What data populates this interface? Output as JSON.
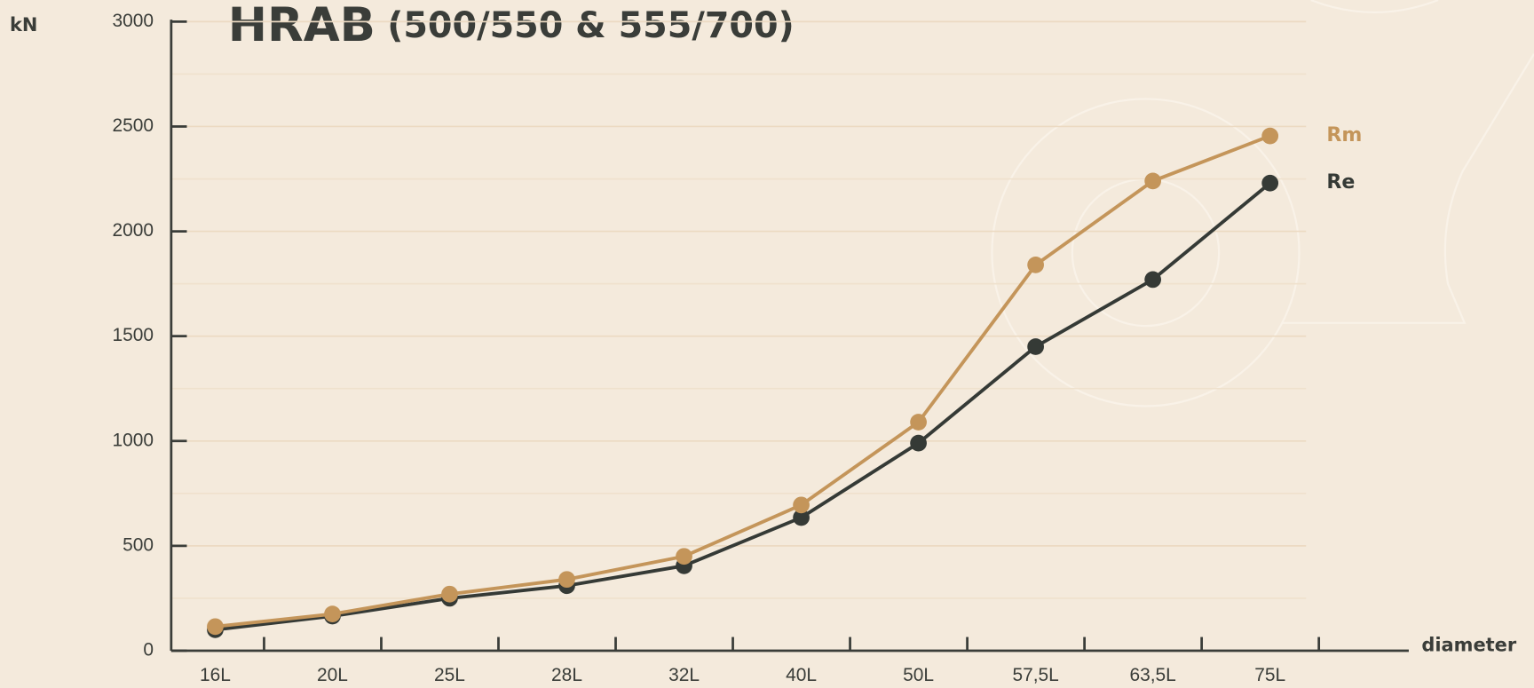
{
  "chart_data": {
    "type": "line",
    "title": "HRAB",
    "subtitle": "(500/550 & 555/700)",
    "y_label": "kN",
    "x_label": "diameter",
    "categories": [
      "16L",
      "20L",
      "25L",
      "28L",
      "32L",
      "40L",
      "50L",
      "57,5L",
      "63,5L",
      "75L"
    ],
    "series": [
      {
        "name": "Rm",
        "color": "#c4955a",
        "values": [
          115,
          175,
          270,
          340,
          450,
          695,
          1090,
          1840,
          2240,
          2455
        ]
      },
      {
        "name": "Re",
        "color": "#353a36",
        "values": [
          100,
          165,
          250,
          310,
          405,
          635,
          990,
          1450,
          1770,
          2230
        ]
      }
    ],
    "ylim": [
      0,
      3000
    ],
    "yticks": [
      0,
      500,
      1000,
      1500,
      2000,
      2500,
      3000
    ],
    "minor_yticks": [
      250,
      750,
      1250,
      1750,
      2250,
      2750
    ],
    "grid": true
  }
}
